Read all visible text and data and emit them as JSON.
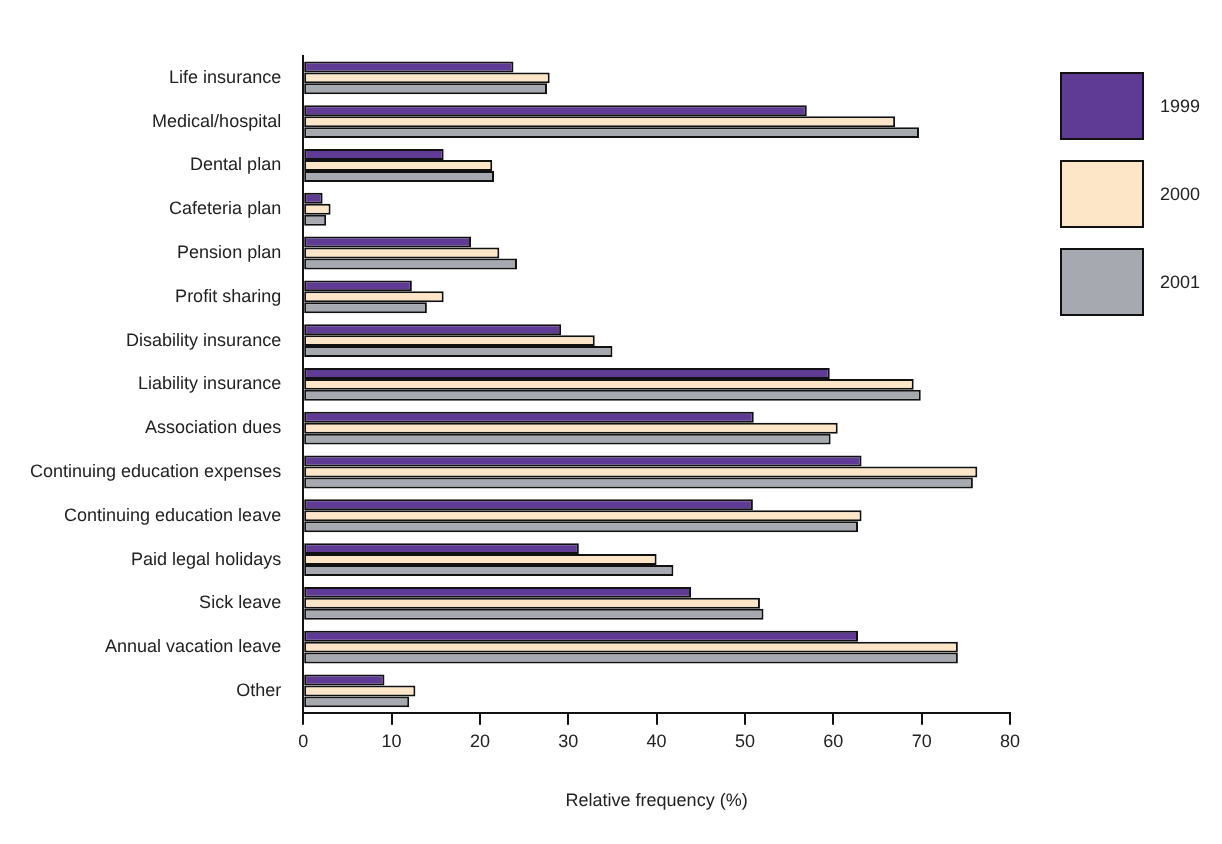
{
  "chart_data": {
    "type": "bar",
    "orientation": "horizontal",
    "xlabel": "Relative frequency (%)",
    "categories": [
      "Life insurance",
      "Medical/hospital",
      "Dental plan",
      "Cafeteria plan",
      "Pension plan",
      "Profit sharing",
      "Disability insurance",
      "Liability insurance",
      "Association dues",
      "Continuing education expenses",
      "Continuing education leave",
      "Paid legal holidays",
      "Sick leave",
      "Annual vacation leave",
      "Other"
    ],
    "series": [
      {
        "name": "1999",
        "color": "#5f3b96",
        "values": [
          23.8,
          57,
          15.9,
          2.2,
          19,
          12.3,
          29.2,
          59.6,
          51,
          63.2,
          50.9,
          31.2,
          43.9,
          62.8,
          9.2
        ]
      },
      {
        "name": "2000",
        "color": "#fde6c8",
        "values": [
          27.9,
          67,
          21.4,
          3.1,
          22.2,
          15.9,
          33,
          69.1,
          60.5,
          76.3,
          63.2,
          40,
          51.7,
          74.1,
          12.7
        ]
      },
      {
        "name": "2001",
        "color": "#a7a9b0",
        "values": [
          27.6,
          69.7,
          21.6,
          2.6,
          24.2,
          14,
          35,
          69.9,
          59.7,
          75.8,
          62.8,
          41.9,
          52.1,
          74.1,
          12
        ]
      }
    ],
    "xlim": [
      0,
      80
    ],
    "xticks": [
      0,
      10,
      20,
      30,
      40,
      50,
      60,
      70,
      80
    ],
    "grid": false,
    "legend": "top right"
  }
}
